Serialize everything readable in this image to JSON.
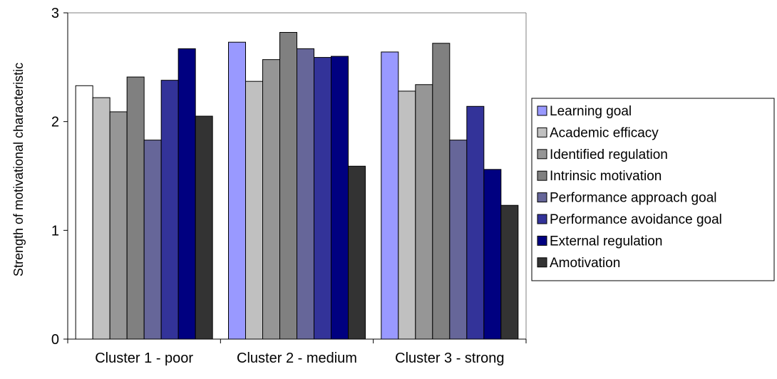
{
  "chart_data": {
    "type": "bar",
    "title": "",
    "xlabel": "",
    "ylabel": "Strength of motivational characteristic",
    "ylim": [
      0,
      3
    ],
    "yticks": [
      "0",
      "1",
      "2",
      "3"
    ],
    "grid": false,
    "legend_position": "right",
    "categories": [
      "Cluster 1 - poor",
      "Cluster 2 - medium",
      "Cluster 3 - strong"
    ],
    "series": [
      {
        "name": "Learning goal",
        "color": "#9999ff",
        "values": [
          2.33,
          2.73,
          2.64
        ]
      },
      {
        "name": "Academic efficacy",
        "color": "#c0c0c0",
        "values": [
          2.22,
          2.37,
          2.28
        ]
      },
      {
        "name": "Identified regulation",
        "color": "#969696",
        "values": [
          2.09,
          2.57,
          2.34
        ]
      },
      {
        "name": "Intrinsic motivation",
        "color": "#808080",
        "values": [
          2.41,
          2.82,
          2.72
        ]
      },
      {
        "name": "Performance approach goal",
        "color": "#666699",
        "values": [
          1.83,
          2.67,
          1.83
        ]
      },
      {
        "name": "Performance avoidance goal",
        "color": "#333399",
        "values": [
          2.38,
          2.59,
          2.14
        ]
      },
      {
        "name": "External regulation",
        "color": "#000080",
        "values": [
          2.67,
          2.6,
          1.56
        ]
      },
      {
        "name": "Amotivation",
        "color": "#333333",
        "values": [
          2.05,
          1.59,
          1.23
        ]
      }
    ],
    "bar_fill_overrides": [
      {
        "series": 0,
        "category": 0,
        "color": "#ffffff"
      }
    ]
  }
}
